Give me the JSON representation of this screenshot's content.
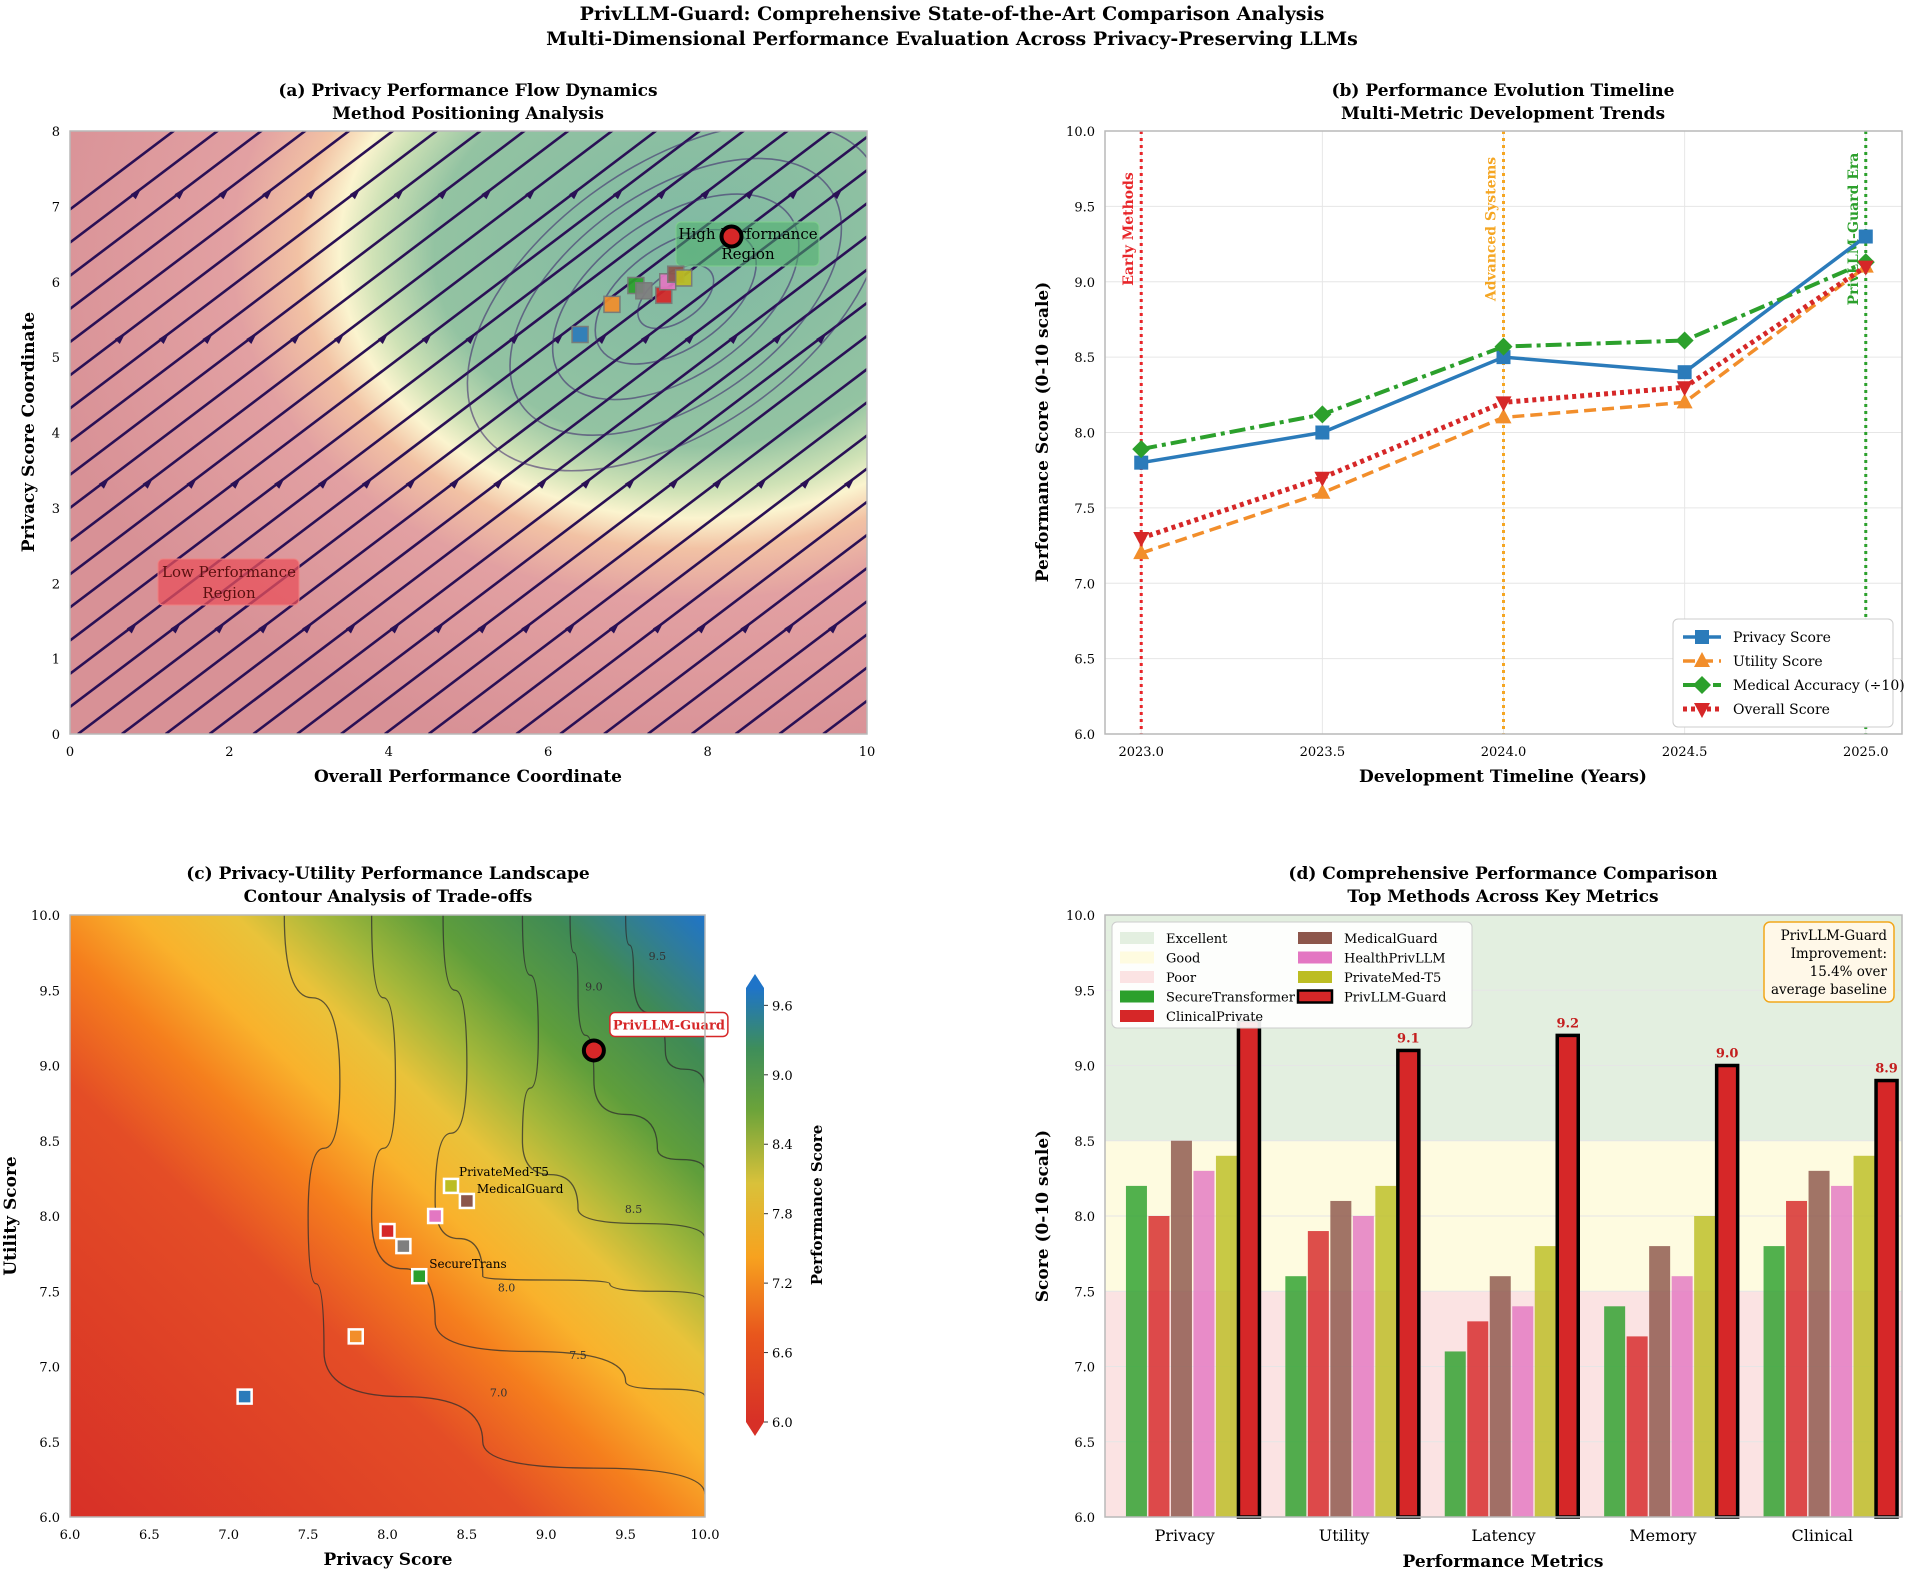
{
  "figure": {
    "title_line1": "PrivLLM-Guard: Comprehensive State-of-the-Art Comparison Analysis",
    "title_line2": "Multi-Dimensional Performance Evaluation Across Privacy-Preserving LLMs"
  },
  "colors": {
    "privacy": "#2b7bba",
    "utility": "#f28e2b",
    "medical": "#2ca02c",
    "overall": "#d62728",
    "secure": "#2ca02c",
    "clinical": "#d62728",
    "medicalguard": "#8c564b",
    "health": "#e377c2",
    "privatemed": "#bcbd22",
    "privllm": "#d62728"
  },
  "chart_data": [
    {
      "id": "a",
      "type": "scatter",
      "title": "(a) Privacy Performance Flow Dynamics",
      "subtitle": "Method Positioning Analysis",
      "xlabel": "Overall Performance Coordinate",
      "ylabel": "Privacy Score Coordinate",
      "xlim": [
        0,
        10
      ],
      "ylim": [
        0,
        8
      ],
      "xticks": [
        "0",
        "2",
        "4",
        "6",
        "8",
        "10"
      ],
      "yticks": [
        "0",
        "1",
        "2",
        "3",
        "4",
        "5",
        "6",
        "7",
        "8"
      ],
      "region_high": [
        "High Performance",
        "Region"
      ],
      "region_low": [
        "Low Performance",
        "Region"
      ],
      "points": [
        {
          "name": "m1",
          "x": 6.4,
          "y": 5.3,
          "color": "#2b7bba"
        },
        {
          "name": "m2",
          "x": 6.8,
          "y": 5.7,
          "color": "#f28e2b"
        },
        {
          "name": "m3",
          "x": 7.1,
          "y": 5.95,
          "color": "#2ca02c"
        },
        {
          "name": "m4",
          "x": 7.2,
          "y": 5.88,
          "color": "#7f7f7f"
        },
        {
          "name": "m5",
          "x": 7.45,
          "y": 5.82,
          "color": "#d62728"
        },
        {
          "name": "m6",
          "x": 7.5,
          "y": 6.0,
          "color": "#e377c2"
        },
        {
          "name": "m7",
          "x": 7.6,
          "y": 6.1,
          "color": "#8c564b"
        },
        {
          "name": "m8",
          "x": 7.7,
          "y": 6.05,
          "color": "#bcbd22"
        }
      ],
      "star": {
        "name": "PrivLLM-Guard",
        "x": 8.3,
        "y": 6.6
      }
    },
    {
      "id": "b",
      "type": "line",
      "title": "(b) Performance Evolution Timeline",
      "subtitle": "Multi-Metric Development Trends",
      "xlabel": "Development Timeline (Years)",
      "ylabel": "Performance Score (0-10 scale)",
      "xlim": [
        2022.9,
        2025.1
      ],
      "ylim": [
        6.0,
        10.0
      ],
      "xticks": [
        "2023.0",
        "2023.5",
        "2024.0",
        "2024.5",
        "2025.0"
      ],
      "yticks": [
        "6.0",
        "6.5",
        "7.0",
        "7.5",
        "8.0",
        "8.5",
        "9.0",
        "9.5",
        "10.0"
      ],
      "x": [
        2023.0,
        2023.5,
        2024.0,
        2024.5,
        2025.0
      ],
      "series": [
        {
          "name": "Privacy Score",
          "values": [
            7.8,
            8.0,
            8.5,
            8.4,
            9.3
          ]
        },
        {
          "name": "Utility Score",
          "values": [
            7.2,
            7.6,
            8.1,
            8.2,
            9.1
          ]
        },
        {
          "name": "Medical Accuracy (÷10)",
          "values": [
            7.89,
            8.12,
            8.57,
            8.61,
            9.13
          ]
        },
        {
          "name": "Overall Score",
          "values": [
            7.3,
            7.7,
            8.2,
            8.3,
            9.1
          ]
        }
      ],
      "eras": [
        {
          "label": "Early Methods",
          "x": 2023.0
        },
        {
          "label": "Advanced Systems",
          "x": 2024.0
        },
        {
          "label": "PrivLLM-Guard Era",
          "x": 2025.0
        }
      ]
    },
    {
      "id": "c",
      "type": "heatmap",
      "title": "(c) Privacy-Utility Performance Landscape",
      "subtitle": "Contour Analysis of Trade-offs",
      "xlabel": "Privacy Score",
      "ylabel": "Utility Score",
      "xlim": [
        6.0,
        10.0
      ],
      "ylim": [
        6.0,
        10.0
      ],
      "xticks": [
        "6.0",
        "6.5",
        "7.0",
        "7.5",
        "8.0",
        "8.5",
        "9.0",
        "9.5",
        "10.0"
      ],
      "yticks": [
        "6.0",
        "6.5",
        "7.0",
        "7.5",
        "8.0",
        "8.5",
        "9.0",
        "9.5",
        "10.0"
      ],
      "colorbar_label": "Performance Score",
      "colorbar_ticks": [
        "6.0",
        "6.6",
        "7.2",
        "7.8",
        "8.4",
        "9.0",
        "9.6"
      ],
      "contour_labels": [
        "7.0",
        "7.5",
        "8.0",
        "8.5",
        "9.0",
        "9.5"
      ],
      "points": [
        {
          "x": 7.1,
          "y": 6.8,
          "color": "#2b7bba",
          "label": ""
        },
        {
          "x": 7.8,
          "y": 7.2,
          "color": "#f28e2b",
          "label": ""
        },
        {
          "x": 8.0,
          "y": 7.9,
          "color": "#d62728",
          "label": ""
        },
        {
          "x": 8.1,
          "y": 7.8,
          "color": "#7f7f7f",
          "label": ""
        },
        {
          "x": 8.2,
          "y": 7.6,
          "color": "#2ca02c",
          "label": "SecureTrans"
        },
        {
          "x": 8.3,
          "y": 8.0,
          "color": "#e377c2",
          "label": ""
        },
        {
          "x": 8.4,
          "y": 8.2,
          "color": "#bcbd22",
          "label": "PrivateMed-T5"
        },
        {
          "x": 8.5,
          "y": 8.1,
          "color": "#8c564b",
          "label": "MedicalGuard"
        }
      ],
      "star": {
        "x": 9.3,
        "y": 9.1,
        "label": "PrivLLM-Guard"
      }
    },
    {
      "id": "d",
      "type": "bar",
      "title": "(d) Comprehensive Performance Comparison",
      "subtitle": "Top Methods Across Key Metrics",
      "xlabel": "Performance Metrics",
      "ylabel": "Score (0-10 scale)",
      "ylim": [
        6.0,
        10.0
      ],
      "yticks": [
        "6.0",
        "6.5",
        "7.0",
        "7.5",
        "8.0",
        "8.5",
        "9.0",
        "9.5",
        "10.0"
      ],
      "categories": [
        "Privacy",
        "Utility",
        "Latency",
        "Memory",
        "Clinical"
      ],
      "bands": [
        {
          "name": "Excellent",
          "from": 8.5,
          "to": 10.0,
          "color": "#e3efe0"
        },
        {
          "name": "Good",
          "from": 7.5,
          "to": 8.5,
          "color": "#fefbe0"
        },
        {
          "name": "Poor",
          "from": 6.0,
          "to": 7.5,
          "color": "#fbe3e3"
        }
      ],
      "series": [
        {
          "name": "SecureTransformer",
          "values": [
            8.2,
            7.6,
            7.1,
            7.4,
            7.8
          ]
        },
        {
          "name": "ClinicalPrivate",
          "values": [
            8.0,
            7.9,
            7.3,
            7.2,
            8.1
          ]
        },
        {
          "name": "MedicalGuard",
          "values": [
            8.5,
            8.1,
            7.6,
            7.8,
            8.3
          ]
        },
        {
          "name": "HealthPrivLLM",
          "values": [
            8.3,
            8.0,
            7.4,
            7.6,
            8.2
          ]
        },
        {
          "name": "PrivateMed-T5",
          "values": [
            8.4,
            8.2,
            7.8,
            8.0,
            8.4
          ]
        },
        {
          "name": "PrivLLM-Guard",
          "values": [
            9.3,
            9.1,
            9.2,
            9.0,
            8.9
          ]
        }
      ],
      "value_labels": [
        "",
        "9.1",
        "9.2",
        "9.0",
        "8.9"
      ],
      "improvement_box": [
        "PrivLLM-Guard",
        "Improvement:",
        "15.4% over",
        "average baseline"
      ]
    }
  ]
}
